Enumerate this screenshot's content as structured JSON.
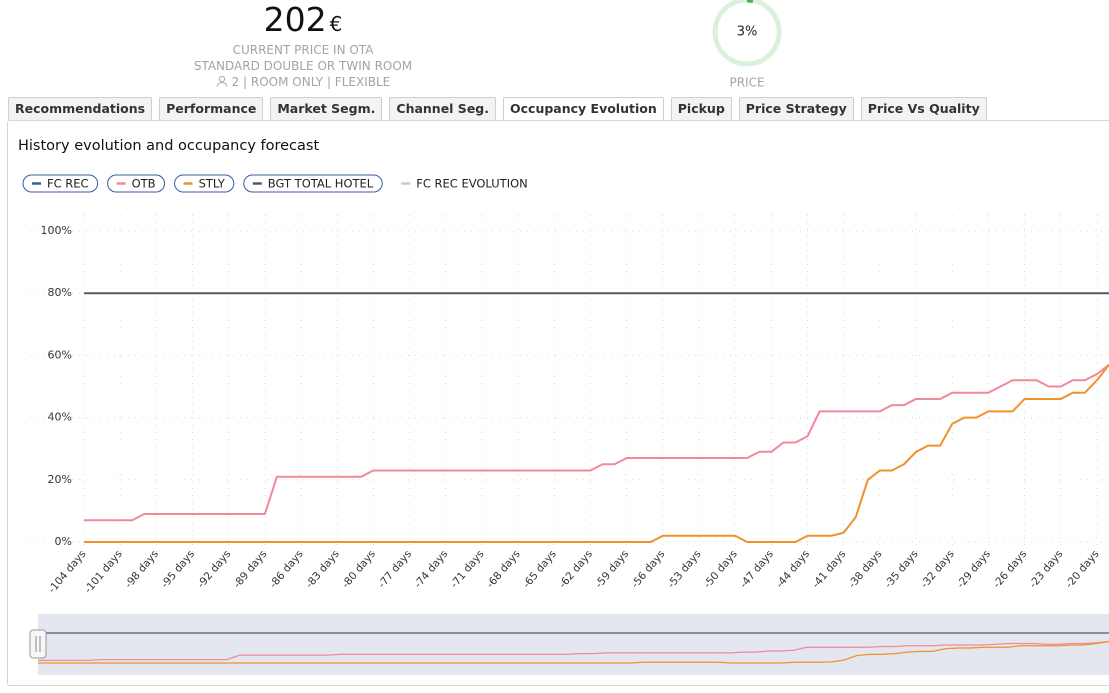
{
  "header": {
    "price": "202",
    "currency": "€",
    "caption": "CURRENT PRICE IN OTA",
    "room": "STANDARD DOUBLE OR TWIN ROOM",
    "details": "2 | ROOM ONLY | FLEXIBLE"
  },
  "gauge": {
    "value": 3,
    "label": "3%",
    "title": "PRICE",
    "color": "#4caf50",
    "track_color": "#dcf1dd"
  },
  "tabs": [
    "Recommendations",
    "Performance",
    "Market Segm.",
    "Channel Seg.",
    "Occupancy Evolution",
    "Pickup",
    "Price Strategy",
    "Price Vs Quality"
  ],
  "active_tab": 4,
  "chart_data": {
    "type": "line",
    "title": "History evolution and occupancy forecast",
    "x": [
      -104,
      -103,
      -102,
      -101,
      -100,
      -99,
      -98,
      -97,
      -96,
      -95,
      -94,
      -93,
      -92,
      -91,
      -90,
      -89,
      -88,
      -87,
      -86,
      -85,
      -84,
      -83,
      -82,
      -81,
      -80,
      -79,
      -78,
      -77,
      -76,
      -75,
      -74,
      -73,
      -72,
      -71,
      -70,
      -69,
      -68,
      -67,
      -66,
      -65,
      -64,
      -63,
      -62,
      -61,
      -60,
      -59,
      -58,
      -57,
      -56,
      -55,
      -54,
      -53,
      -52,
      -51,
      -50,
      -49,
      -48,
      -47,
      -46,
      -45,
      -44,
      -43,
      -42,
      -41,
      -40,
      -39,
      -38,
      -37,
      -36,
      -35,
      -34,
      -33,
      -32,
      -31,
      -30,
      -29,
      -28,
      -27,
      -26,
      -25,
      -24,
      -23,
      -22,
      -21,
      -20,
      -19
    ],
    "xlim": [
      -104,
      -19
    ],
    "xticks": [
      {
        "value": -104,
        "label": "-104 days"
      },
      {
        "value": -101,
        "label": "-101 days"
      },
      {
        "value": -98,
        "label": "-98 days"
      },
      {
        "value": -95,
        "label": "-95 days"
      },
      {
        "value": -92,
        "label": "-92 days"
      },
      {
        "value": -89,
        "label": "-89 days"
      },
      {
        "value": -86,
        "label": "-86 days"
      },
      {
        "value": -83,
        "label": "-83 days"
      },
      {
        "value": -80,
        "label": "-80 days"
      },
      {
        "value": -77,
        "label": "-77 days"
      },
      {
        "value": -74,
        "label": "-74 days"
      },
      {
        "value": -71,
        "label": "-71 days"
      },
      {
        "value": -68,
        "label": "-68 days"
      },
      {
        "value": -65,
        "label": "-65 days"
      },
      {
        "value": -62,
        "label": "-62 days"
      },
      {
        "value": -59,
        "label": "-59 days"
      },
      {
        "value": -56,
        "label": "-56 days"
      },
      {
        "value": -53,
        "label": "-53 days"
      },
      {
        "value": -50,
        "label": "-50 days"
      },
      {
        "value": -47,
        "label": "-47 days"
      },
      {
        "value": -44,
        "label": "-44 days"
      },
      {
        "value": -41,
        "label": "-41 days"
      },
      {
        "value": -38,
        "label": "-38 days"
      },
      {
        "value": -35,
        "label": "-35 days"
      },
      {
        "value": -32,
        "label": "-32 days"
      },
      {
        "value": -29,
        "label": "-29 days"
      },
      {
        "value": -26,
        "label": "-26 days"
      },
      {
        "value": -23,
        "label": "-23 days"
      },
      {
        "value": -20,
        "label": "-20 days"
      }
    ],
    "ylim": [
      0,
      100
    ],
    "yticks": [
      {
        "value": 0,
        "label": "0%"
      },
      {
        "value": 20,
        "label": "20%"
      },
      {
        "value": 40,
        "label": "40%"
      },
      {
        "value": 60,
        "label": "60%"
      },
      {
        "value": 80,
        "label": "80%"
      },
      {
        "value": 100,
        "label": "100%"
      }
    ],
    "grid": true,
    "legend": "top-left",
    "series": [
      {
        "name": "FC REC",
        "color": "#3b5ba0",
        "values": [
          null,
          null,
          null,
          null,
          null,
          null,
          null,
          null,
          null,
          null,
          null,
          null,
          null,
          null,
          null,
          null,
          null,
          null,
          null,
          null,
          null,
          null,
          null,
          null,
          null,
          null,
          null,
          null,
          null,
          null,
          null,
          null,
          null,
          null,
          null,
          null,
          null,
          null,
          null,
          null,
          null,
          null,
          null,
          null,
          null,
          null,
          null,
          null,
          null,
          null,
          null,
          null,
          null,
          null,
          null,
          null,
          null,
          null,
          null,
          null,
          null,
          null,
          null,
          null,
          null,
          null,
          null,
          null,
          null,
          null,
          null,
          null,
          null,
          null,
          null,
          null,
          null,
          null,
          null,
          null,
          null,
          null,
          null,
          null,
          null,
          null
        ]
      },
      {
        "name": "OTB",
        "color": "#f0899a",
        "values": [
          7,
          7,
          7,
          7,
          7,
          9,
          9,
          9,
          9,
          9,
          9,
          9,
          9,
          9,
          9,
          9,
          21,
          21,
          21,
          21,
          21,
          21,
          21,
          21,
          23,
          23,
          23,
          23,
          23,
          23,
          23,
          23,
          23,
          23,
          23,
          23,
          23,
          23,
          23,
          23,
          23,
          23,
          23,
          25,
          25,
          27,
          27,
          27,
          27,
          27,
          27,
          27,
          27,
          27,
          27,
          27,
          29,
          29,
          32,
          32,
          34,
          42,
          42,
          42,
          42,
          42,
          42,
          44,
          44,
          46,
          46,
          46,
          48,
          48,
          48,
          48,
          50,
          52,
          52,
          52,
          50,
          50,
          52,
          52,
          54,
          57
        ]
      },
      {
        "name": "STLY",
        "color": "#f0922b",
        "values": [
          0,
          0,
          0,
          0,
          0,
          0,
          0,
          0,
          0,
          0,
          0,
          0,
          0,
          0,
          0,
          0,
          0,
          0,
          0,
          0,
          0,
          0,
          0,
          0,
          0,
          0,
          0,
          0,
          0,
          0,
          0,
          0,
          0,
          0,
          0,
          0,
          0,
          0,
          0,
          0,
          0,
          0,
          0,
          0,
          0,
          0,
          0,
          0,
          2,
          2,
          2,
          2,
          2,
          2,
          2,
          0,
          0,
          0,
          0,
          0,
          2,
          2,
          2,
          3,
          8,
          20,
          23,
          23,
          25,
          29,
          31,
          31,
          38,
          40,
          40,
          42,
          42,
          42,
          46,
          46,
          46,
          46,
          48,
          48,
          52,
          57
        ]
      },
      {
        "name": "BGT TOTAL HOTEL",
        "color": "#555a66",
        "values": [
          80,
          80,
          80,
          80,
          80,
          80,
          80,
          80,
          80,
          80,
          80,
          80,
          80,
          80,
          80,
          80,
          80,
          80,
          80,
          80,
          80,
          80,
          80,
          80,
          80,
          80,
          80,
          80,
          80,
          80,
          80,
          80,
          80,
          80,
          80,
          80,
          80,
          80,
          80,
          80,
          80,
          80,
          80,
          80,
          80,
          80,
          80,
          80,
          80,
          80,
          80,
          80,
          80,
          80,
          80,
          80,
          80,
          80,
          80,
          80,
          80,
          80,
          80,
          80,
          80,
          80,
          80,
          80,
          80,
          80,
          80,
          80,
          80,
          80,
          80,
          80,
          80,
          80,
          80,
          80,
          80,
          80,
          80,
          80,
          80,
          80
        ]
      },
      {
        "name": "FC REC EVOLUTION",
        "color": "#cccccc",
        "values": [
          null,
          null,
          null,
          null,
          null,
          null,
          null,
          null,
          null,
          null,
          null,
          null,
          null,
          null,
          null,
          null,
          null,
          null,
          null,
          null,
          null,
          null,
          null,
          null,
          null,
          null,
          null,
          null,
          null,
          null,
          null,
          null,
          null,
          null,
          null,
          null,
          null,
          null,
          null,
          null,
          null,
          null,
          null,
          null,
          null,
          null,
          null,
          null,
          null,
          null,
          null,
          null,
          null,
          null,
          null,
          null,
          null,
          null,
          null,
          null,
          null,
          null,
          null,
          null,
          null,
          null,
          null,
          null,
          null,
          null,
          null,
          null,
          null,
          null,
          null,
          null,
          null,
          null,
          null,
          null,
          null,
          null,
          null,
          null,
          null,
          null
        ]
      }
    ]
  }
}
